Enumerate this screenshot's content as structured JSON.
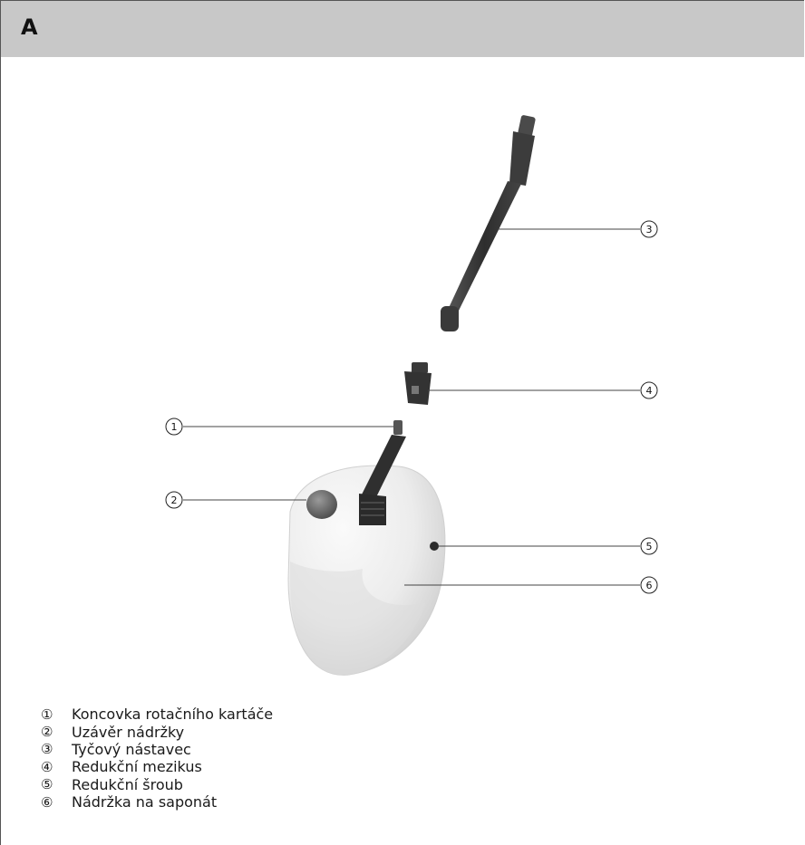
{
  "header": {
    "letter": "A"
  },
  "callouts": [
    {
      "num": "①",
      "label": "Koncovka rotačního kartáče"
    },
    {
      "num": "②",
      "label": "Uzávěr nádržky"
    },
    {
      "num": "③",
      "label": "Tyčový nástavec"
    },
    {
      "num": "④",
      "label": "Redukční mezikus"
    },
    {
      "num": "⑤",
      "label": "Redukční šroub"
    },
    {
      "num": "⑥",
      "label": "Nádržka na saponát"
    }
  ],
  "colors": {
    "header_bg": "#c8c8c8",
    "part_dark": "#3a3a3a",
    "tank_light": "#eeeeee"
  }
}
